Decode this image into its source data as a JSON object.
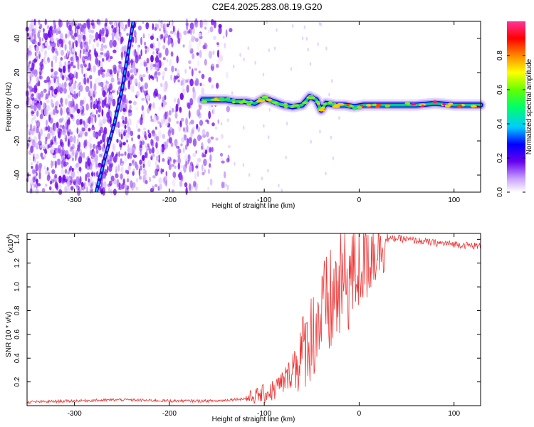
{
  "title": "C2E4.2025.283.08.19.G20",
  "chart_data": [
    {
      "type": "heatmap",
      "xlabel": "Height of straight line (km)",
      "ylabel": "Frequency (Hz)",
      "xlim": [
        -350,
        128
      ],
      "ylim": [
        -50,
        50
      ],
      "xticks": [
        -300,
        -200,
        -100,
        0,
        100
      ],
      "yticks": [
        -40,
        -20,
        0,
        20,
        40
      ],
      "colorbar": {
        "label": "Normalized spectral amplitude",
        "range": [
          0,
          1
        ],
        "ticks": [
          0.0,
          0.2,
          0.4,
          0.6,
          0.8
        ]
      },
      "features": {
        "noise_region_x": [
          -350,
          -150
        ],
        "diagonal_trace": [
          [
            -277,
            -50
          ],
          [
            -268,
            -30
          ],
          [
            -258,
            -10
          ],
          [
            -250,
            10
          ],
          [
            -244,
            30
          ],
          [
            -238,
            50
          ]
        ],
        "signal_band": [
          [
            -165,
            4
          ],
          [
            -150,
            4
          ],
          [
            -140,
            4
          ],
          [
            -130,
            3
          ],
          [
            -120,
            3
          ],
          [
            -110,
            2
          ],
          [
            -100,
            5
          ],
          [
            -90,
            3
          ],
          [
            -80,
            1
          ],
          [
            -70,
            0
          ],
          [
            -60,
            1
          ],
          [
            -52,
            6
          ],
          [
            -45,
            4
          ],
          [
            -40,
            -2
          ],
          [
            -35,
            2
          ],
          [
            -25,
            1
          ],
          [
            -15,
            1
          ],
          [
            -5,
            0
          ],
          [
            5,
            1
          ],
          [
            20,
            1
          ],
          [
            40,
            1
          ],
          [
            60,
            1
          ],
          [
            80,
            2
          ],
          [
            100,
            1
          ],
          [
            128,
            1
          ]
        ]
      }
    },
    {
      "type": "line",
      "xlabel": "Height of straight line (km)",
      "ylabel": "SNR (10 * v/v)",
      "y_scale_label": "(x10",
      "y_scale_exp": "4",
      "y_scale_close": ")",
      "xlim": [
        -350,
        128
      ],
      "ylim": [
        0,
        1.45
      ],
      "xticks": [
        -300,
        -200,
        -100,
        0,
        100
      ],
      "yticks": [
        0.2,
        0.4,
        0.6,
        0.8,
        1.0,
        1.2,
        1.4
      ],
      "series_color": "#ee3333",
      "envelope": [
        [
          -350,
          0.03
        ],
        [
          -300,
          0.04
        ],
        [
          -250,
          0.05
        ],
        [
          -200,
          0.04
        ],
        [
          -150,
          0.04
        ],
        [
          -120,
          0.06
        ],
        [
          -100,
          0.1
        ],
        [
          -90,
          0.13
        ],
        [
          -80,
          0.2
        ],
        [
          -70,
          0.3
        ],
        [
          -60,
          0.45
        ],
        [
          -50,
          0.6
        ],
        [
          -40,
          0.75
        ],
        [
          -30,
          0.85
        ],
        [
          -20,
          1.0
        ],
        [
          -10,
          1.1
        ],
        [
          0,
          1.2
        ],
        [
          10,
          1.28
        ],
        [
          20,
          1.35
        ],
        [
          30,
          1.4
        ],
        [
          40,
          1.41
        ],
        [
          60,
          1.39
        ],
        [
          80,
          1.37
        ],
        [
          100,
          1.36
        ],
        [
          128,
          1.34
        ]
      ]
    }
  ]
}
